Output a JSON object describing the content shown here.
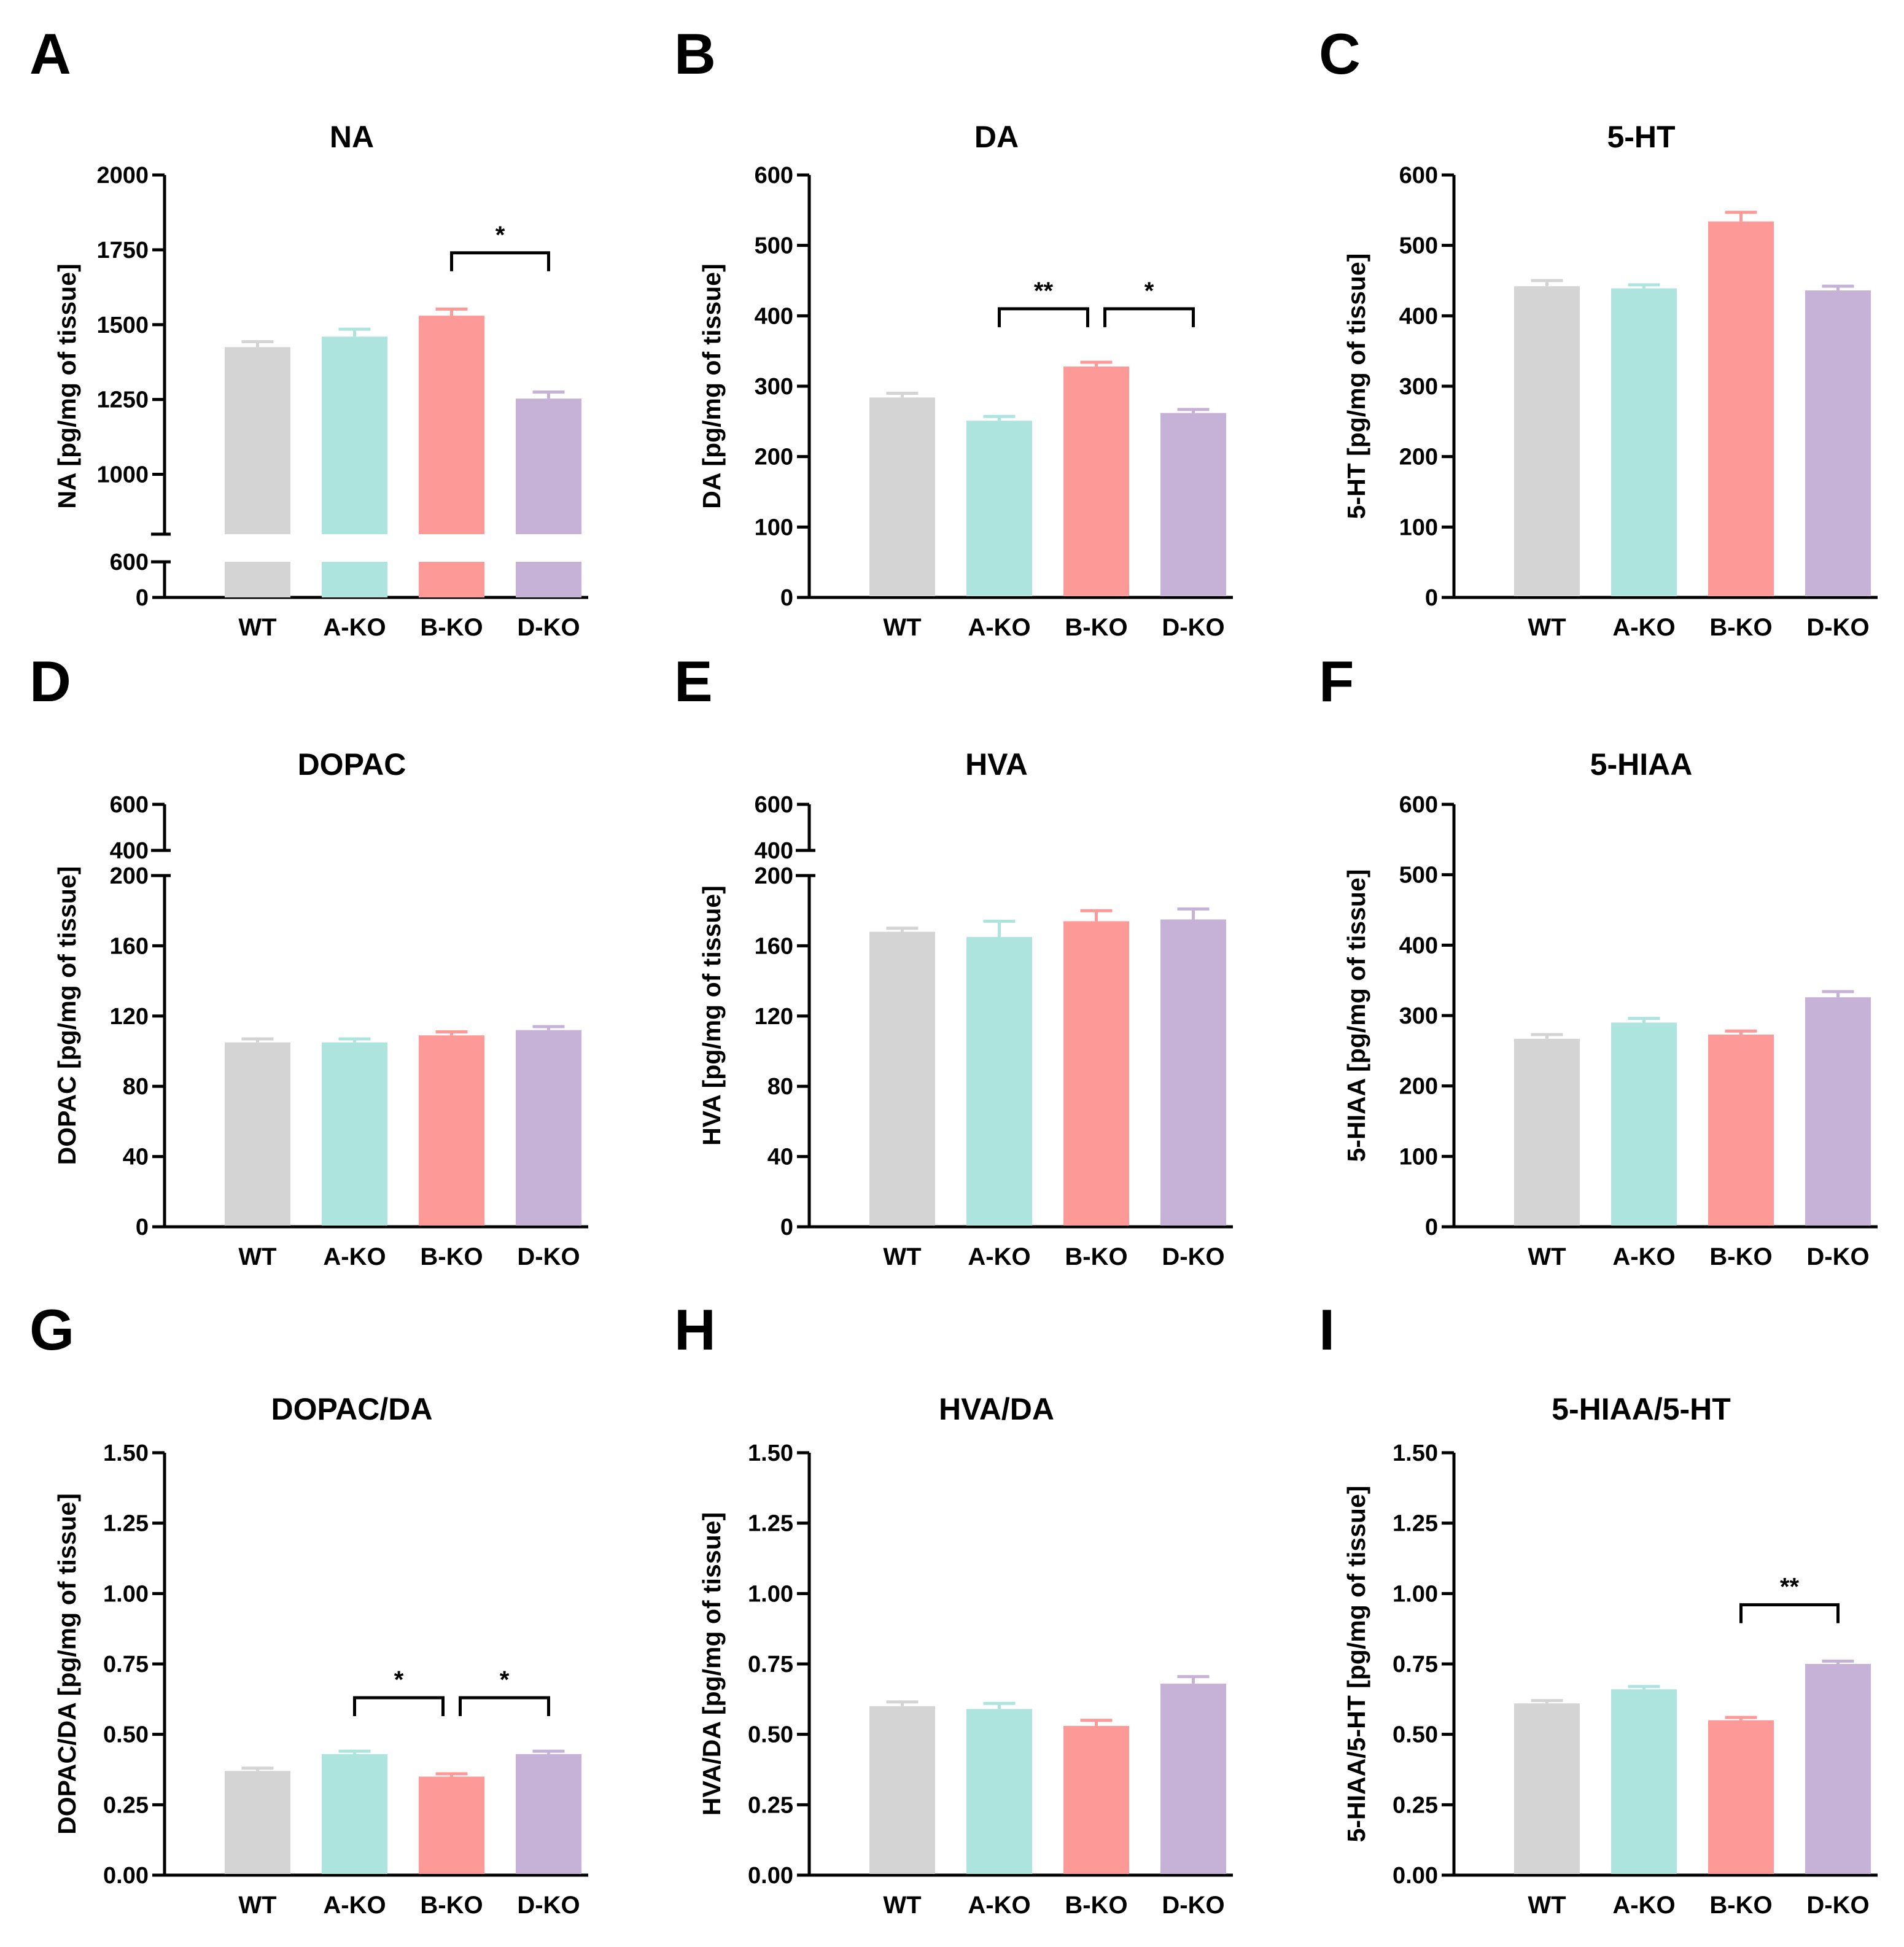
{
  "figure": {
    "colors": {
      "WT": "#d4d4d4",
      "A-KO": "#aee4de",
      "B-KO": "#fd9a98",
      "D-KO": "#c5b2d6"
    }
  },
  "chart_data": [
    {
      "panel": "A",
      "type": "bar",
      "title": "NA",
      "ylabel": "NA [pg/mg of tissue]",
      "categories": [
        "WT",
        "A-KO",
        "B-KO",
        "D-KO"
      ],
      "values": [
        1425,
        1460,
        1530,
        1253
      ],
      "errors": [
        18,
        25,
        22,
        22
      ],
      "axis_break": {
        "lower_ticks": [
          0,
          600
        ],
        "upper_ylim": [
          800,
          2000
        ],
        "upper_ticks": [
          1000,
          1250,
          1500,
          1750,
          2000
        ]
      },
      "tick_labels": [
        "0",
        "600",
        "1000",
        "1250",
        "1500",
        "1750",
        "2000"
      ],
      "significance": [
        {
          "from": 2,
          "to": 3,
          "label": "*",
          "y": 1740
        }
      ]
    },
    {
      "panel": "B",
      "type": "bar",
      "title": "DA",
      "ylabel": "DA [pg/mg of tissue]",
      "categories": [
        "WT",
        "A-KO",
        "B-KO",
        "D-KO"
      ],
      "values": [
        284,
        251,
        328,
        262
      ],
      "errors": [
        6,
        6,
        6,
        5
      ],
      "ylim": [
        0,
        600
      ],
      "ticks": [
        0,
        100,
        200,
        300,
        400,
        500,
        600
      ],
      "tick_labels": [
        "0",
        "100",
        "200",
        "300",
        "400",
        "500",
        "600"
      ],
      "significance": [
        {
          "from": 1,
          "to": 2,
          "label": "**",
          "y": 410
        },
        {
          "from": 2,
          "to": 3,
          "label": "*",
          "y": 410
        }
      ]
    },
    {
      "panel": "C",
      "type": "bar",
      "title": "5-HT",
      "ylabel": "5-HT [pg/mg of tissue]",
      "categories": [
        "WT",
        "A-KO",
        "B-KO",
        "D-KO"
      ],
      "values": [
        442,
        439,
        534,
        436
      ],
      "errors": [
        8,
        5,
        13,
        6
      ],
      "ylim": [
        0,
        600
      ],
      "ticks": [
        0,
        100,
        200,
        300,
        400,
        500,
        600
      ],
      "tick_labels": [
        "0",
        "100",
        "200",
        "300",
        "400",
        "500",
        "600"
      ],
      "significance": []
    },
    {
      "panel": "D",
      "type": "bar",
      "title": "DOPAC",
      "ylabel": "DOPAC [pg/mg of tissue]",
      "categories": [
        "WT",
        "A-KO",
        "B-KO",
        "D-KO"
      ],
      "values": [
        105,
        105,
        109,
        112
      ],
      "errors": [
        2,
        2,
        2,
        2
      ],
      "axis_break": {
        "lower_ylim": [
          0,
          200
        ],
        "lower_ticks": [
          0,
          40,
          80,
          120,
          160,
          200
        ],
        "upper_ticks": [
          400,
          600
        ]
      },
      "tick_labels": [
        "0",
        "40",
        "80",
        "120",
        "160",
        "200",
        "400",
        "600"
      ],
      "significance": []
    },
    {
      "panel": "E",
      "type": "bar",
      "title": "HVA",
      "ylabel": "HVA [pg/mg of tissue]",
      "categories": [
        "WT",
        "A-KO",
        "B-KO",
        "D-KO"
      ],
      "values": [
        168,
        165,
        174,
        175
      ],
      "errors": [
        2,
        9,
        6,
        6
      ],
      "axis_break": {
        "lower_ylim": [
          0,
          200
        ],
        "lower_ticks": [
          0,
          40,
          80,
          120,
          160,
          200
        ],
        "upper_ticks": [
          400,
          600
        ]
      },
      "tick_labels": [
        "0",
        "40",
        "80",
        "120",
        "160",
        "200",
        "400",
        "600"
      ],
      "significance": []
    },
    {
      "panel": "F",
      "type": "bar",
      "title": "5-HIAA",
      "ylabel": "5-HIAA [pg/mg of tissue]",
      "categories": [
        "WT",
        "A-KO",
        "B-KO",
        "D-KO"
      ],
      "values": [
        267,
        290,
        273,
        326
      ],
      "errors": [
        6,
        6,
        5,
        8
      ],
      "ylim": [
        0,
        600
      ],
      "ticks": [
        0,
        100,
        200,
        300,
        400,
        500,
        600
      ],
      "tick_labels": [
        "0",
        "100",
        "200",
        "300",
        "400",
        "500",
        "600"
      ],
      "significance": []
    },
    {
      "panel": "G",
      "type": "bar",
      "title": "DOPAC/DA",
      "ylabel": "DOPAC/DA [pg/mg of tissue]",
      "categories": [
        "WT",
        "A-KO",
        "B-KO",
        "D-KO"
      ],
      "values": [
        0.37,
        0.43,
        0.35,
        0.43
      ],
      "errors": [
        0.01,
        0.01,
        0.01,
        0.01
      ],
      "ylim": [
        0,
        1.5
      ],
      "ticks": [
        0,
        0.25,
        0.5,
        0.75,
        1.0,
        1.25,
        1.5
      ],
      "tick_labels": [
        "0.00",
        "0.25",
        "0.50",
        "0.75",
        "1.00",
        "1.25",
        "1.50"
      ],
      "significance": [
        {
          "from": 1,
          "to": 2,
          "label": "*",
          "y": 0.63
        },
        {
          "from": 2,
          "to": 3,
          "label": "*",
          "y": 0.63
        }
      ]
    },
    {
      "panel": "H",
      "type": "bar",
      "title": "HVA/DA",
      "ylabel": "HVA/DA [pg/mg of tissue]",
      "categories": [
        "WT",
        "A-KO",
        "B-KO",
        "D-KO"
      ],
      "values": [
        0.6,
        0.59,
        0.53,
        0.68
      ],
      "errors": [
        0.015,
        0.02,
        0.02,
        0.025
      ],
      "ylim": [
        0,
        1.5
      ],
      "ticks": [
        0,
        0.25,
        0.5,
        0.75,
        1.0,
        1.25,
        1.5
      ],
      "tick_labels": [
        "0.00",
        "0.25",
        "0.50",
        "0.75",
        "1.00",
        "1.25",
        "1.50"
      ],
      "significance": []
    },
    {
      "panel": "I",
      "type": "bar",
      "title": "5-HIAA/5-HT",
      "ylabel": "5-HIAA/5-HT [pg/mg of tissue]",
      "categories": [
        "WT",
        "A-KO",
        "B-KO",
        "D-KO"
      ],
      "values": [
        0.61,
        0.66,
        0.55,
        0.75
      ],
      "errors": [
        0.01,
        0.01,
        0.01,
        0.01
      ],
      "ylim": [
        0,
        1.5
      ],
      "ticks": [
        0,
        0.25,
        0.5,
        0.75,
        1.0,
        1.25,
        1.5
      ],
      "tick_labels": [
        "0.00",
        "0.25",
        "0.50",
        "0.75",
        "1.00",
        "1.25",
        "1.50"
      ],
      "significance": [
        {
          "from": 2,
          "to": 3,
          "label": "**",
          "y": 0.96
        }
      ]
    }
  ]
}
